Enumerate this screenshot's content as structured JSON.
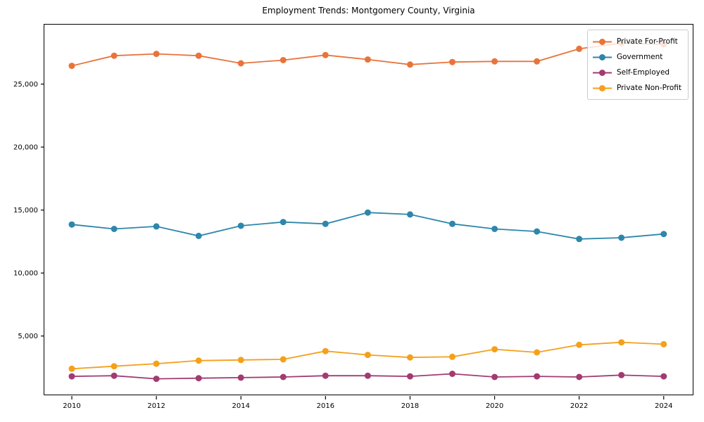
{
  "figure": {
    "background": "#ffffff",
    "frame_color": "#000000"
  },
  "chart_data": {
    "type": "line",
    "title": "Employment Trends: Montgomery County, Virginia",
    "xlabel": "",
    "ylabel": "",
    "grid": false,
    "legend_position": "upper right",
    "x": [
      2010,
      2011,
      2012,
      2013,
      2014,
      2015,
      2016,
      2017,
      2018,
      2019,
      2020,
      2021,
      2022,
      2023,
      2024
    ],
    "series": [
      {
        "name": "Private For-Profit",
        "color": "#E8743B",
        "values": [
          26450,
          27250,
          27400,
          27250,
          26650,
          26900,
          27300,
          26950,
          26550,
          26750,
          26800,
          26800,
          27800,
          28250,
          28150
        ]
      },
      {
        "name": "Government",
        "color": "#2E86AB",
        "values": [
          13850,
          13500,
          13700,
          12950,
          13750,
          14050,
          13900,
          14800,
          14650,
          13900,
          13500,
          13300,
          12700,
          12800,
          13100
        ]
      },
      {
        "name": "Self-Employed",
        "color": "#A23B72",
        "values": [
          1800,
          1850,
          1600,
          1650,
          1700,
          1750,
          1850,
          1850,
          1800,
          2000,
          1750,
          1800,
          1750,
          1900,
          1800
        ]
      },
      {
        "name": "Private Non-Profit",
        "color": "#F5A01B",
        "values": [
          2400,
          2600,
          2800,
          3050,
          3100,
          3150,
          3800,
          3500,
          3300,
          3350,
          3950,
          3700,
          4300,
          4500,
          4350
        ]
      }
    ],
    "xlim": [
      2009.35,
      2024.72
    ],
    "ylim": [
      240,
      29720
    ],
    "xticks": {
      "values": [
        2010,
        2012,
        2014,
        2016,
        2018,
        2020,
        2022,
        2024
      ],
      "labels": [
        "2010",
        "2012",
        "2014",
        "2016",
        "2018",
        "2020",
        "2022",
        "2024"
      ]
    },
    "yticks": {
      "values": [
        5000,
        10000,
        15000,
        20000,
        25000
      ],
      "labels": [
        "5,000",
        "10,000",
        "15,000",
        "20,000",
        "25,000"
      ]
    }
  }
}
